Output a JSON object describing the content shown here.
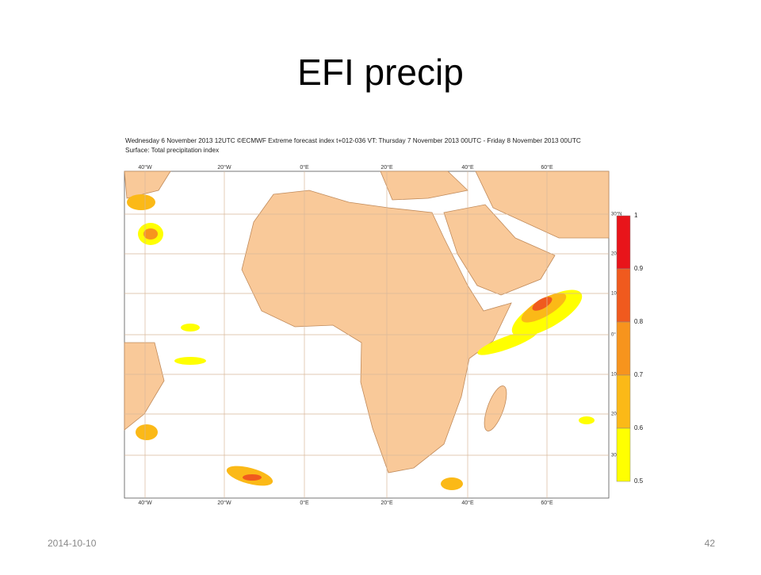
{
  "slide": {
    "title": "EFI precip",
    "date": "2014-10-10",
    "page_number": "42"
  },
  "map": {
    "header_line_1": "Wednesday 6 November 2013 12UTC ©ECMWF Extreme forecast index t+012-036 VT: Thursday 7 November 2013 00UTC - Friday 8 November 2013 00UTC",
    "header_line_2": "Surface: Total precipitation index",
    "longitude_labels": [
      "40°W",
      "20°W",
      "0°E",
      "20°E",
      "40°E",
      "60°E"
    ],
    "latitude_labels": [
      "30°N",
      "20",
      "10",
      "0°",
      "10",
      "20",
      "30"
    ],
    "colorbar": {
      "levels": [
        1,
        0.9,
        0.8,
        0.7,
        0.6,
        0.5
      ],
      "colors": [
        "#e8141a",
        "#f05a1e",
        "#f7941d",
        "#fbb917",
        "#ffff00"
      ]
    }
  }
}
